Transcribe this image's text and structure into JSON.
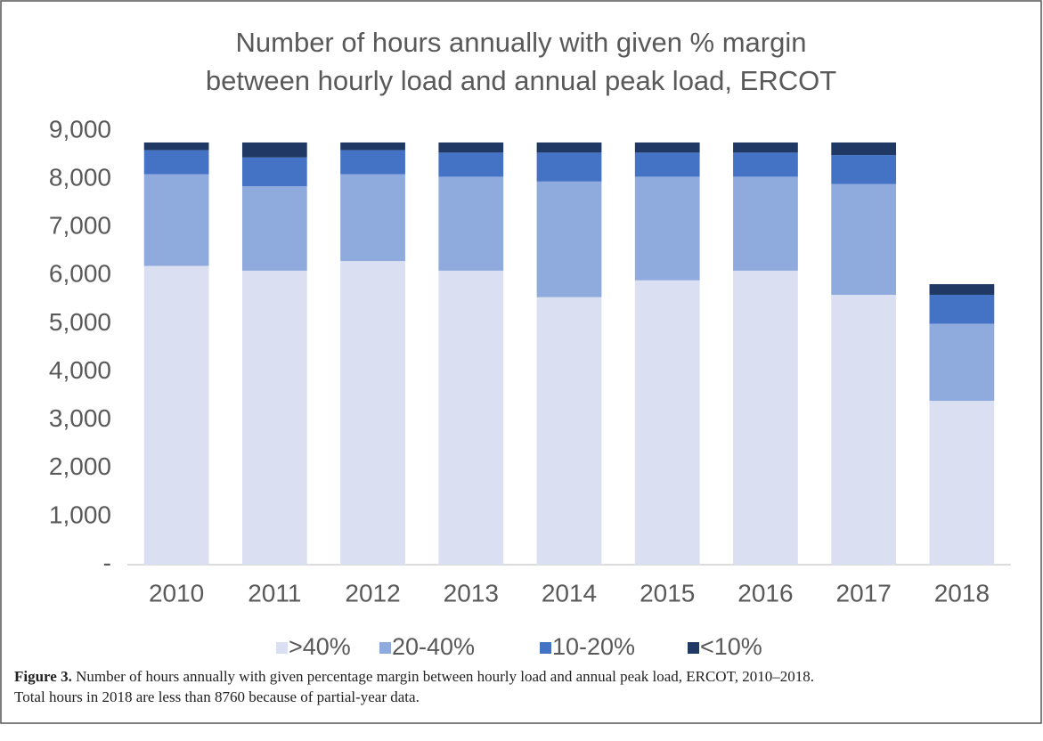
{
  "chart_data": {
    "type": "stacked_bar",
    "title": [
      "Number of hours annually with given % margin",
      "between hourly load and annual peak load, ERCOT"
    ],
    "categories": [
      "2010",
      "2011",
      "2012",
      "2013",
      "2014",
      "2015",
      "2016",
      "2017",
      "2018"
    ],
    "series": [
      {
        "name": ">40%",
        "color": "#dae0f2",
        "values": [
          6200,
          6100,
          6300,
          6100,
          5550,
          5900,
          6100,
          5600,
          3400
        ]
      },
      {
        "name": "20-40%",
        "color": "#8faadc",
        "values": [
          1900,
          1750,
          1800,
          1950,
          2400,
          2150,
          1950,
          2300,
          1600
        ]
      },
      {
        "name": "10-20%",
        "color": "#4472c4",
        "values": [
          500,
          600,
          500,
          500,
          600,
          500,
          500,
          600,
          600
        ]
      },
      {
        "name": "<10%",
        "color": "#1f3864",
        "values": [
          160,
          310,
          160,
          210,
          210,
          210,
          210,
          260,
          220
        ]
      }
    ],
    "ylim": [
      0,
      9000
    ],
    "yticks": [
      {
        "value": 0,
        "label": "-"
      },
      {
        "value": 1000,
        "label": "1,000"
      },
      {
        "value": 2000,
        "label": "2,000"
      },
      {
        "value": 3000,
        "label": "3,000"
      },
      {
        "value": 4000,
        "label": "4,000"
      },
      {
        "value": 5000,
        "label": "5,000"
      },
      {
        "value": 6000,
        "label": "6,000"
      },
      {
        "value": 7000,
        "label": "7,000"
      },
      {
        "value": 8000,
        "label": "8,000"
      },
      {
        "value": 9000,
        "label": "9,000"
      }
    ],
    "legend": "bottom"
  },
  "caption": {
    "label": "Figure 3.",
    "lines": [
      "Number of hours annually with given percentage margin between hourly load and annual peak load, ERCOT, 2010–2018.",
      "Total hours in 2018 are less than 8760 because of partial-year data."
    ]
  }
}
